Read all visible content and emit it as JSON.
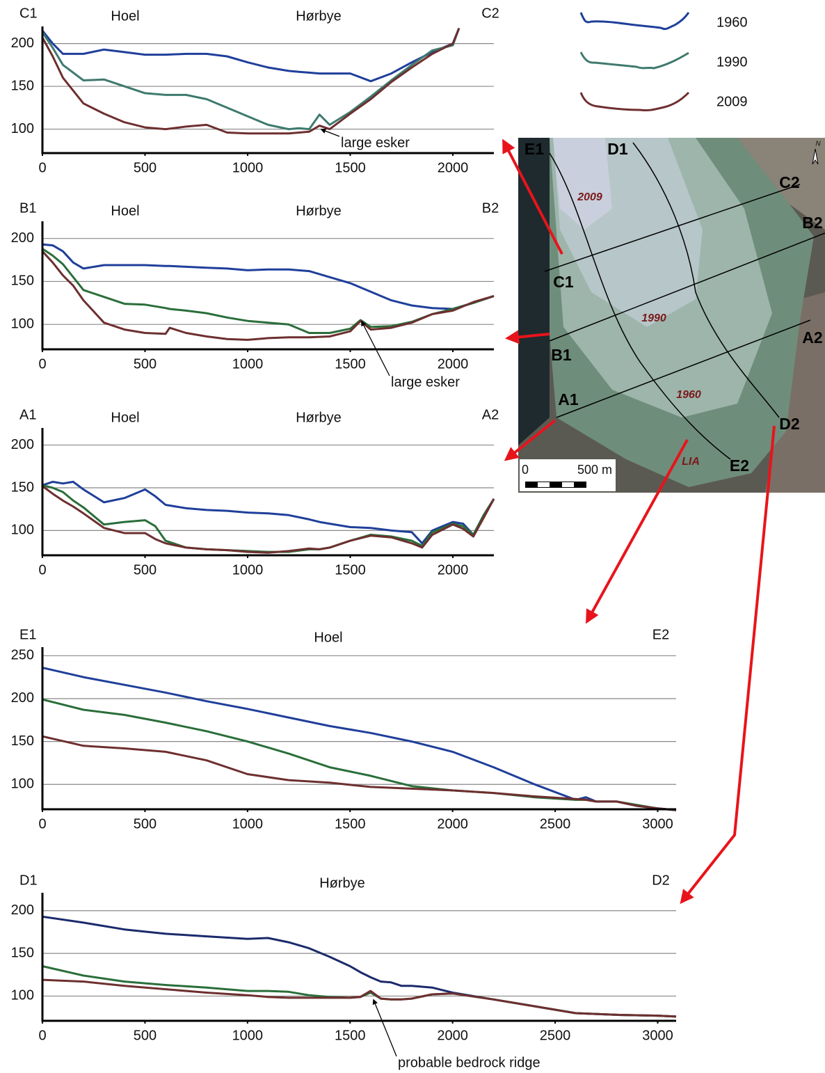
{
  "chart_data": [
    {
      "type": "line",
      "left_label": "C1",
      "right_label": "C2",
      "sites": [
        "Hoel",
        "Hørbye"
      ],
      "annotation": "large esker",
      "x": [
        0,
        50,
        100,
        200,
        300,
        400,
        500,
        600,
        700,
        800,
        900,
        1000,
        1100,
        1200,
        1250,
        1300,
        1350,
        1400,
        1500,
        1600,
        1700,
        1800,
        1900,
        2000,
        2030
      ],
      "series": [
        {
          "name": "1960",
          "color": "#1f3f9a",
          "values": [
            215,
            200,
            188,
            188,
            193,
            190,
            187,
            187,
            188,
            188,
            185,
            178,
            172,
            168,
            167,
            166,
            165,
            165,
            165,
            156,
            165,
            178,
            190,
            200,
            218
          ]
        },
        {
          "name": "1990",
          "color": "#3e7a6e",
          "values": [
            213,
            195,
            175,
            157,
            158,
            150,
            142,
            140,
            140,
            135,
            125,
            115,
            105,
            100,
            101,
            100,
            117,
            105,
            120,
            138,
            157,
            175,
            192,
            198,
            218
          ]
        },
        {
          "name": "2009",
          "color": "#6e2f2f",
          "values": [
            207,
            185,
            160,
            130,
            118,
            108,
            102,
            100,
            103,
            105,
            96,
            95,
            95,
            95,
            96,
            97,
            104,
            100,
            118,
            135,
            155,
            172,
            188,
            200,
            218
          ]
        }
      ],
      "xlim": [
        0,
        2200
      ],
      "ylim": [
        72,
        220
      ],
      "xticks": [
        0,
        500,
        1000,
        1500,
        2000
      ],
      "yticks": [
        100,
        150,
        200
      ],
      "grid": true
    },
    {
      "type": "line",
      "left_label": "B1",
      "right_label": "B2",
      "sites": [
        "Hoel",
        "Hørbye"
      ],
      "annotation": "large esker",
      "x": [
        0,
        50,
        100,
        150,
        200,
        300,
        400,
        500,
        600,
        620,
        700,
        800,
        900,
        1000,
        1100,
        1200,
        1300,
        1400,
        1500,
        1550,
        1600,
        1700,
        1800,
        1900,
        2000,
        2100,
        2200
      ],
      "series": [
        {
          "color": "#1f3f9a",
          "values": [
            193,
            192,
            185,
            172,
            165,
            169,
            169,
            169,
            168,
            168,
            167,
            166,
            165,
            163,
            164,
            164,
            162,
            155,
            148,
            143,
            138,
            128,
            122,
            119,
            118,
            125,
            133
          ]
        },
        {
          "color": "#2a6e3a",
          "values": [
            188,
            180,
            170,
            155,
            140,
            132,
            124,
            123,
            119,
            118,
            116,
            113,
            108,
            104,
            102,
            100,
            90,
            90,
            95,
            105,
            97,
            98,
            103,
            112,
            118,
            125,
            133
          ]
        },
        {
          "color": "#6e2f2f",
          "values": [
            185,
            172,
            157,
            145,
            128,
            102,
            94,
            90,
            89,
            96,
            90,
            86,
            83,
            82,
            84,
            85,
            85,
            86,
            92,
            104,
            94,
            96,
            102,
            112,
            116,
            126,
            133
          ]
        }
      ],
      "xlim": [
        0,
        2200
      ],
      "ylim": [
        71,
        220
      ],
      "xticks": [
        0,
        500,
        1000,
        1500,
        2000
      ],
      "yticks": [
        100,
        150,
        200
      ],
      "grid": true
    },
    {
      "type": "line",
      "left_label": "A1",
      "right_label": "A2",
      "sites": [
        "Hoel",
        "Hørbye"
      ],
      "x": [
        0,
        50,
        100,
        150,
        200,
        300,
        400,
        500,
        550,
        600,
        700,
        800,
        900,
        1000,
        1100,
        1200,
        1300,
        1350,
        1400,
        1500,
        1600,
        1700,
        1800,
        1850,
        1900,
        2000,
        2050,
        2100,
        2150,
        2200
      ],
      "series": [
        {
          "color": "#1f3f9a",
          "values": [
            153,
            157,
            155,
            157,
            148,
            133,
            138,
            148,
            140,
            130,
            126,
            124,
            123,
            121,
            120,
            118,
            113,
            110,
            108,
            104,
            103,
            100,
            98,
            85,
            100,
            110,
            108,
            95,
            118,
            137
          ]
        },
        {
          "color": "#2a6e3a",
          "values": [
            153,
            150,
            145,
            135,
            127,
            107,
            110,
            112,
            105,
            88,
            80,
            78,
            77,
            76,
            75,
            75,
            78,
            78,
            80,
            88,
            95,
            93,
            88,
            82,
            98,
            108,
            105,
            95,
            118,
            137
          ]
        },
        {
          "color": "#6e2f2f",
          "values": [
            152,
            143,
            135,
            128,
            120,
            103,
            97,
            97,
            90,
            85,
            80,
            78,
            77,
            75,
            74,
            76,
            79,
            78,
            80,
            88,
            94,
            92,
            85,
            80,
            95,
            107,
            102,
            93,
            115,
            137
          ]
        }
      ],
      "xlim": [
        0,
        2200
      ],
      "ylim": [
        71,
        220
      ],
      "xticks": [
        0,
        500,
        1000,
        1500,
        2000
      ],
      "yticks": [
        100,
        150,
        200
      ],
      "grid": true
    },
    {
      "type": "line",
      "left_label": "E1",
      "right_label": "E2",
      "sites": [
        "Hoel"
      ],
      "x": [
        0,
        200,
        400,
        600,
        800,
        1000,
        1200,
        1400,
        1600,
        1800,
        2000,
        2200,
        2400,
        2600,
        2650,
        2700,
        2800,
        2900,
        3000,
        3090
      ],
      "series": [
        {
          "color": "#1f3f9a",
          "values": [
            236,
            225,
            216,
            207,
            197,
            188,
            178,
            168,
            160,
            150,
            138,
            120,
            100,
            82,
            85,
            80,
            80,
            75,
            72,
            70
          ]
        },
        {
          "color": "#2a6e3a",
          "values": [
            199,
            187,
            181,
            172,
            162,
            150,
            136,
            120,
            110,
            98,
            93,
            90,
            85,
            82,
            82,
            80,
            80,
            76,
            72,
            70
          ]
        },
        {
          "color": "#6e2f2f",
          "values": [
            156,
            145,
            142,
            138,
            128,
            112,
            105,
            102,
            97,
            95,
            93,
            90,
            86,
            83,
            82,
            80,
            80,
            75,
            72,
            70
          ]
        }
      ],
      "xlim": [
        0,
        3090
      ],
      "ylim": [
        71,
        260
      ],
      "xticks": [
        0,
        500,
        1000,
        1500,
        2000,
        2500,
        3000
      ],
      "yticks": [
        100,
        150,
        200,
        250
      ],
      "grid": true
    },
    {
      "type": "line",
      "left_label": "D1",
      "right_label": "D2",
      "sites": [
        "Hørbye"
      ],
      "annotation": "probable bedrock ridge",
      "x": [
        0,
        200,
        400,
        600,
        800,
        1000,
        1100,
        1200,
        1300,
        1400,
        1500,
        1550,
        1600,
        1650,
        1700,
        1750,
        1800,
        1900,
        2000,
        2200,
        2400,
        2600,
        2800,
        3000,
        3090
      ],
      "series": [
        {
          "color": "#1b2a6b",
          "values": [
            193,
            186,
            178,
            173,
            170,
            167,
            168,
            163,
            156,
            146,
            135,
            128,
            122,
            117,
            116,
            112,
            112,
            110,
            104,
            96,
            88,
            80,
            78,
            77,
            76
          ]
        },
        {
          "color": "#2a6e3a",
          "values": [
            135,
            124,
            117,
            113,
            110,
            106,
            106,
            105,
            101,
            99,
            98,
            99,
            104,
            97,
            96,
            96,
            97,
            102,
            103,
            96,
            88,
            80,
            78,
            77,
            76
          ]
        },
        {
          "color": "#6e2f2f",
          "values": [
            119,
            117,
            112,
            108,
            104,
            101,
            99,
            98,
            98,
            98,
            98,
            99,
            106,
            97,
            96,
            96,
            97,
            102,
            103,
            96,
            88,
            80,
            78,
            77,
            76
          ]
        }
      ],
      "xlim": [
        0,
        3090
      ],
      "ylim": [
        71,
        221
      ],
      "xticks": [
        0,
        500,
        1000,
        1500,
        2000,
        2500,
        3000
      ],
      "yticks": [
        100,
        150,
        200
      ],
      "grid": true
    }
  ],
  "map": {
    "profile_labels": [
      "E1",
      "D1",
      "C2",
      "B2",
      "C1",
      "B1",
      "A2",
      "A1",
      "D2",
      "E2"
    ],
    "year_labels": [
      "2009",
      "1990",
      "1960",
      "LIA"
    ],
    "scale_labels": [
      "0",
      "500 m"
    ],
    "north": "N"
  }
}
